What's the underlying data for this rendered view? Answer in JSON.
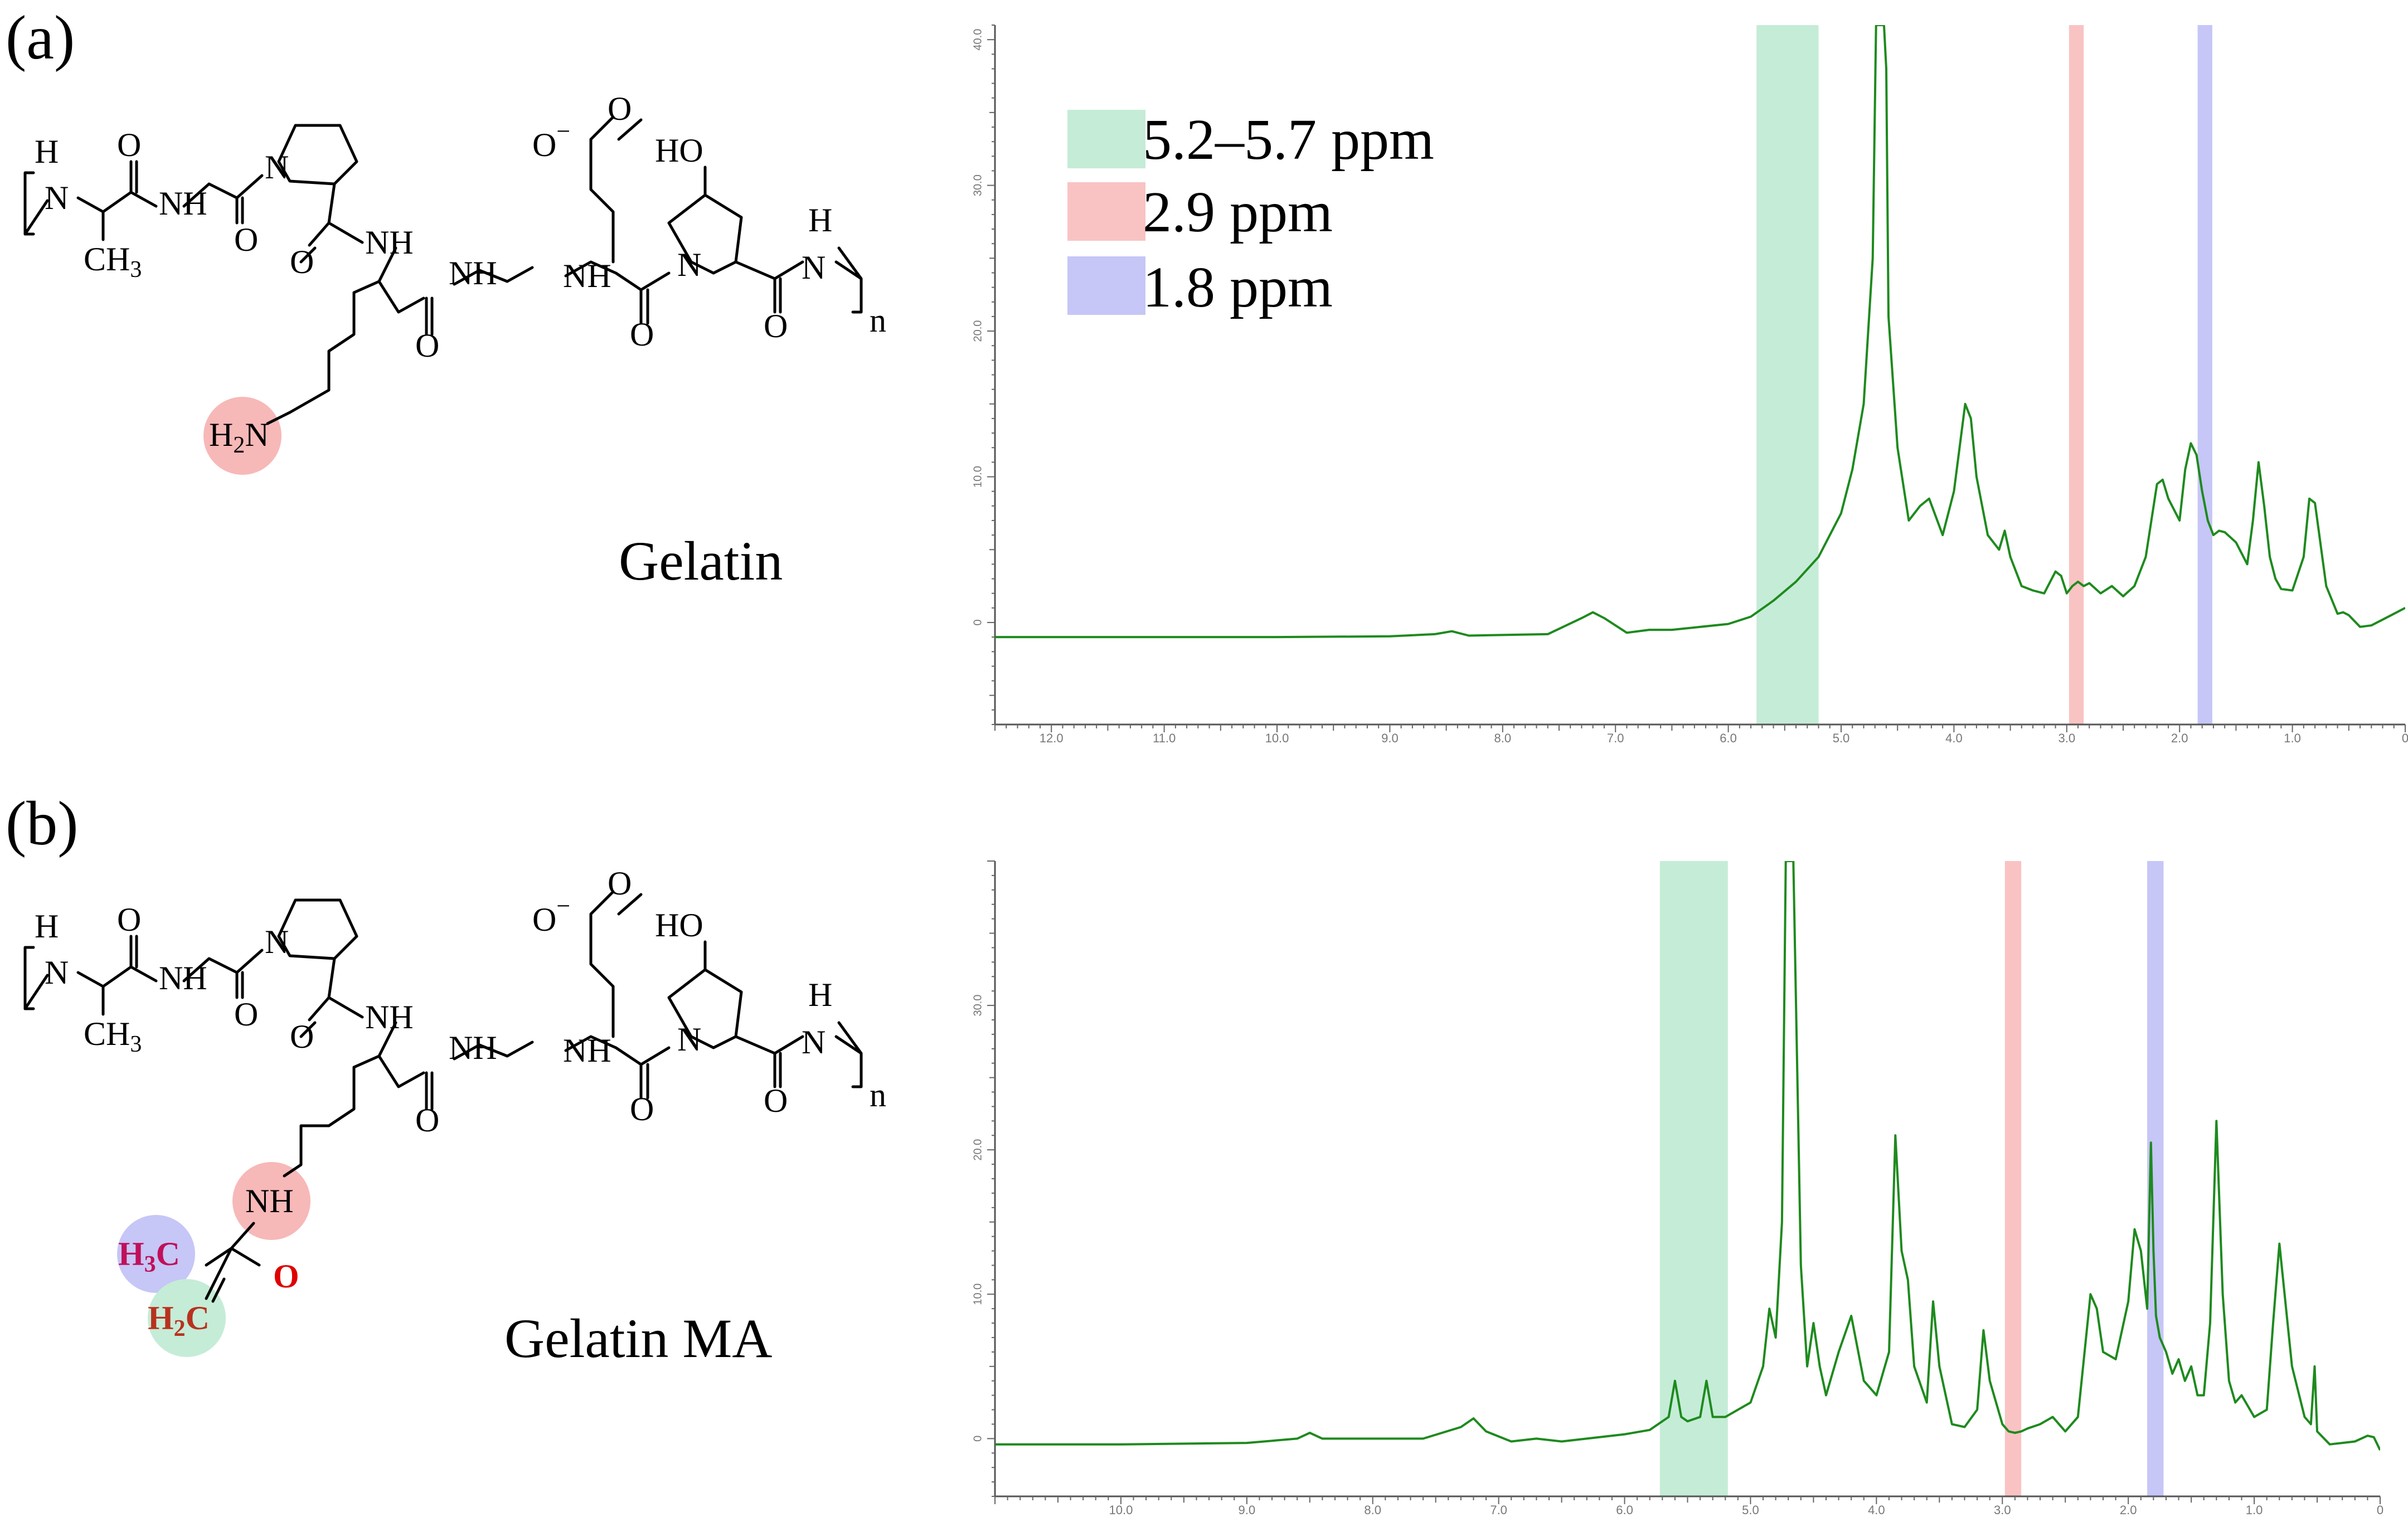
{
  "panels": [
    {
      "label": "(a)",
      "molecule_name": "Gelatin",
      "chem": {
        "h": "H",
        "n": "N",
        "nh": "NH",
        "o": "O",
        "ch3": "CH",
        "sub3": "3",
        "sub2": "2",
        "oxy": "O",
        "minus": "−",
        "ho": "HO",
        "n_repeat": "n",
        "h2n": "H",
        "h2n_n": "N"
      }
    },
    {
      "label": "(b)",
      "molecule_name": "Gelatin MA",
      "chem": {
        "h": "H",
        "n": "N",
        "nh": "NH",
        "o": "O",
        "ch3": "CH",
        "sub3": "3",
        "oxy": "O",
        "minus": "−",
        "ho": "HO",
        "n_repeat": "n",
        "h3c": "H",
        "h3c_c": "C",
        "h2c": "H",
        "h2c_c": "C",
        "sub2": "2",
        "ma_nh": "NH",
        "ma_o": "O"
      }
    }
  ],
  "legend": [
    {
      "label": "5.2–5.7 ppm",
      "color": "#c5ecd7"
    },
    {
      "label": "2.9 ppm",
      "color": "#f9c3c3"
    },
    {
      "label": "1.8 ppm",
      "color": "#c6c6f7"
    }
  ],
  "chart_data": [
    {
      "type": "line",
      "xlabel": "",
      "ylabel": "",
      "x_reversed": true,
      "xlim": [
        12.5,
        0
      ],
      "ylim": [
        -7,
        41
      ],
      "x_ticks": [
        "12.0",
        "11.0",
        "10.0",
        "9.0",
        "8.0",
        "7.0",
        "6.0",
        "5.0",
        "4.0",
        "3.0",
        "2.0",
        "1.0",
        "0"
      ],
      "x_tick_values": [
        12,
        11,
        10,
        9,
        8,
        7,
        6,
        5,
        4,
        3,
        2,
        1,
        0
      ],
      "y_ticks": [
        "0",
        "10.0",
        "20.0",
        "30.0",
        "40.0"
      ],
      "y_tick_values": [
        0,
        10,
        20,
        30,
        40
      ],
      "highlight_bands": [
        [
          5.75,
          5.2
        ],
        [
          2.98,
          2.85
        ],
        [
          1.84,
          1.71
        ]
      ],
      "line_color": "#1e8a1e",
      "series": [
        {
          "x": [
            12.5,
            10.0,
            9.0,
            8.6,
            8.45,
            8.3,
            7.6,
            7.3,
            7.2,
            7.1,
            6.9,
            6.7,
            6.5,
            6.0,
            5.8,
            5.6,
            5.4,
            5.2,
            5.0,
            4.9,
            4.8,
            4.72,
            4.69,
            4.65,
            4.62,
            4.6,
            4.58,
            4.5,
            4.4,
            4.3,
            4.22,
            4.1,
            4.0,
            3.9,
            3.85,
            3.8,
            3.7,
            3.6,
            3.55,
            3.5,
            3.4,
            3.3,
            3.2,
            3.1,
            3.05,
            3.0,
            2.95,
            2.9,
            2.85,
            2.8,
            2.7,
            2.6,
            2.5,
            2.4,
            2.3,
            2.2,
            2.15,
            2.1,
            2.0,
            1.95,
            1.9,
            1.85,
            1.8,
            1.75,
            1.7,
            1.65,
            1.6,
            1.5,
            1.4,
            1.35,
            1.3,
            1.25,
            1.2,
            1.15,
            1.1,
            1.0,
            0.9,
            0.85,
            0.8,
            0.7,
            0.6,
            0.55,
            0.5,
            0.4,
            0.3,
            0.2,
            0.1,
            0.0
          ],
          "y": [
            -1,
            -1,
            -0.95,
            -0.8,
            -0.6,
            -0.9,
            -0.8,
            0.3,
            0.7,
            0.3,
            -0.7,
            -0.5,
            -0.5,
            -0.1,
            0.4,
            1.5,
            2.8,
            4.5,
            7.5,
            10.5,
            15,
            25,
            41,
            41,
            41,
            38,
            21,
            12,
            7,
            8,
            8.5,
            6,
            9,
            15,
            14,
            10,
            6,
            5,
            6.3,
            4.5,
            2.5,
            2.2,
            2.0,
            3.5,
            3.2,
            2.0,
            2.5,
            2.8,
            2.5,
            2.7,
            2.0,
            2.5,
            1.8,
            2.5,
            4.5,
            9.5,
            9.8,
            8.5,
            7.0,
            10.5,
            12.3,
            11.5,
            9.0,
            7.0,
            6.0,
            6.3,
            6.2,
            5.5,
            4.0,
            7.0,
            11,
            8.0,
            4.5,
            3.0,
            2.3,
            2.2,
            4.5,
            8.5,
            8.2,
            2.5,
            0.6,
            0.7,
            0.5,
            -0.3,
            -0.2,
            0.2,
            0.6,
            1.0
          ]
        }
      ]
    },
    {
      "type": "line",
      "xlabel": "",
      "ylabel": "",
      "x_reversed": true,
      "xlim": [
        11.0,
        0
      ],
      "ylim": [
        -4,
        40
      ],
      "x_ticks": [
        "10.0",
        "9.0",
        "8.0",
        "7.0",
        "6.0",
        "5.0",
        "4.0",
        "3.0",
        "2.0",
        "1.0",
        "0"
      ],
      "x_tick_values": [
        10,
        9,
        8,
        7,
        6,
        5,
        4,
        3,
        2,
        1,
        0
      ],
      "y_ticks": [
        "0",
        "10.0",
        "20.0",
        "30.0"
      ],
      "y_tick_values": [
        0,
        10,
        20,
        30
      ],
      "highlight_bands": [
        [
          5.72,
          5.18
        ],
        [
          2.98,
          2.85
        ],
        [
          1.85,
          1.72
        ]
      ],
      "line_color": "#1e8a1e",
      "series": [
        {
          "x": [
            11.0,
            10.0,
            9.0,
            8.6,
            8.5,
            8.4,
            7.6,
            7.3,
            7.2,
            7.1,
            6.9,
            6.7,
            6.5,
            6.0,
            5.8,
            5.65,
            5.6,
            5.55,
            5.5,
            5.4,
            5.35,
            5.3,
            5.2,
            5.0,
            4.9,
            4.85,
            4.8,
            4.75,
            4.72,
            4.69,
            4.66,
            4.6,
            4.55,
            4.5,
            4.45,
            4.4,
            4.3,
            4.2,
            4.1,
            4.0,
            3.9,
            3.85,
            3.8,
            3.75,
            3.7,
            3.6,
            3.55,
            3.5,
            3.4,
            3.3,
            3.2,
            3.15,
            3.1,
            3.0,
            2.95,
            2.9,
            2.85,
            2.8,
            2.7,
            2.6,
            2.5,
            2.4,
            2.3,
            2.25,
            2.2,
            2.1,
            2.0,
            1.95,
            1.9,
            1.85,
            1.82,
            1.8,
            1.78,
            1.75,
            1.7,
            1.65,
            1.6,
            1.55,
            1.5,
            1.45,
            1.4,
            1.35,
            1.3,
            1.25,
            1.2,
            1.15,
            1.1,
            1.0,
            0.9,
            0.85,
            0.8,
            0.7,
            0.6,
            0.55,
            0.52,
            0.5,
            0.4,
            0.3,
            0.2,
            0.1,
            0.05,
            0.0
          ],
          "y": [
            -0.4,
            -0.4,
            -0.3,
            0,
            0.4,
            0,
            0,
            0.8,
            1.4,
            0.5,
            -0.2,
            0,
            -0.2,
            0.3,
            0.6,
            1.5,
            4,
            1.5,
            1.2,
            1.5,
            4,
            1.5,
            1.5,
            2.5,
            5,
            9,
            7,
            15,
            40,
            40,
            40,
            12,
            5,
            8,
            5,
            3,
            6,
            8.5,
            4,
            3,
            6,
            21,
            13,
            11,
            5,
            2.5,
            9.5,
            5,
            1,
            0.8,
            2,
            7.5,
            4,
            1,
            0.5,
            0.4,
            0.5,
            0.7,
            1,
            1.5,
            0.5,
            1.5,
            10,
            9,
            6,
            5.5,
            9.5,
            14.5,
            13,
            9,
            20.5,
            13,
            8.5,
            7,
            6,
            4.5,
            5.5,
            4,
            5,
            3,
            3,
            8,
            22,
            10,
            4,
            2.5,
            3,
            1.5,
            2,
            8,
            13.5,
            5,
            1.5,
            1,
            5,
            0.5,
            -0.4,
            -0.3,
            -0.2,
            0.2,
            0.1,
            -0.8
          ]
        }
      ]
    }
  ]
}
